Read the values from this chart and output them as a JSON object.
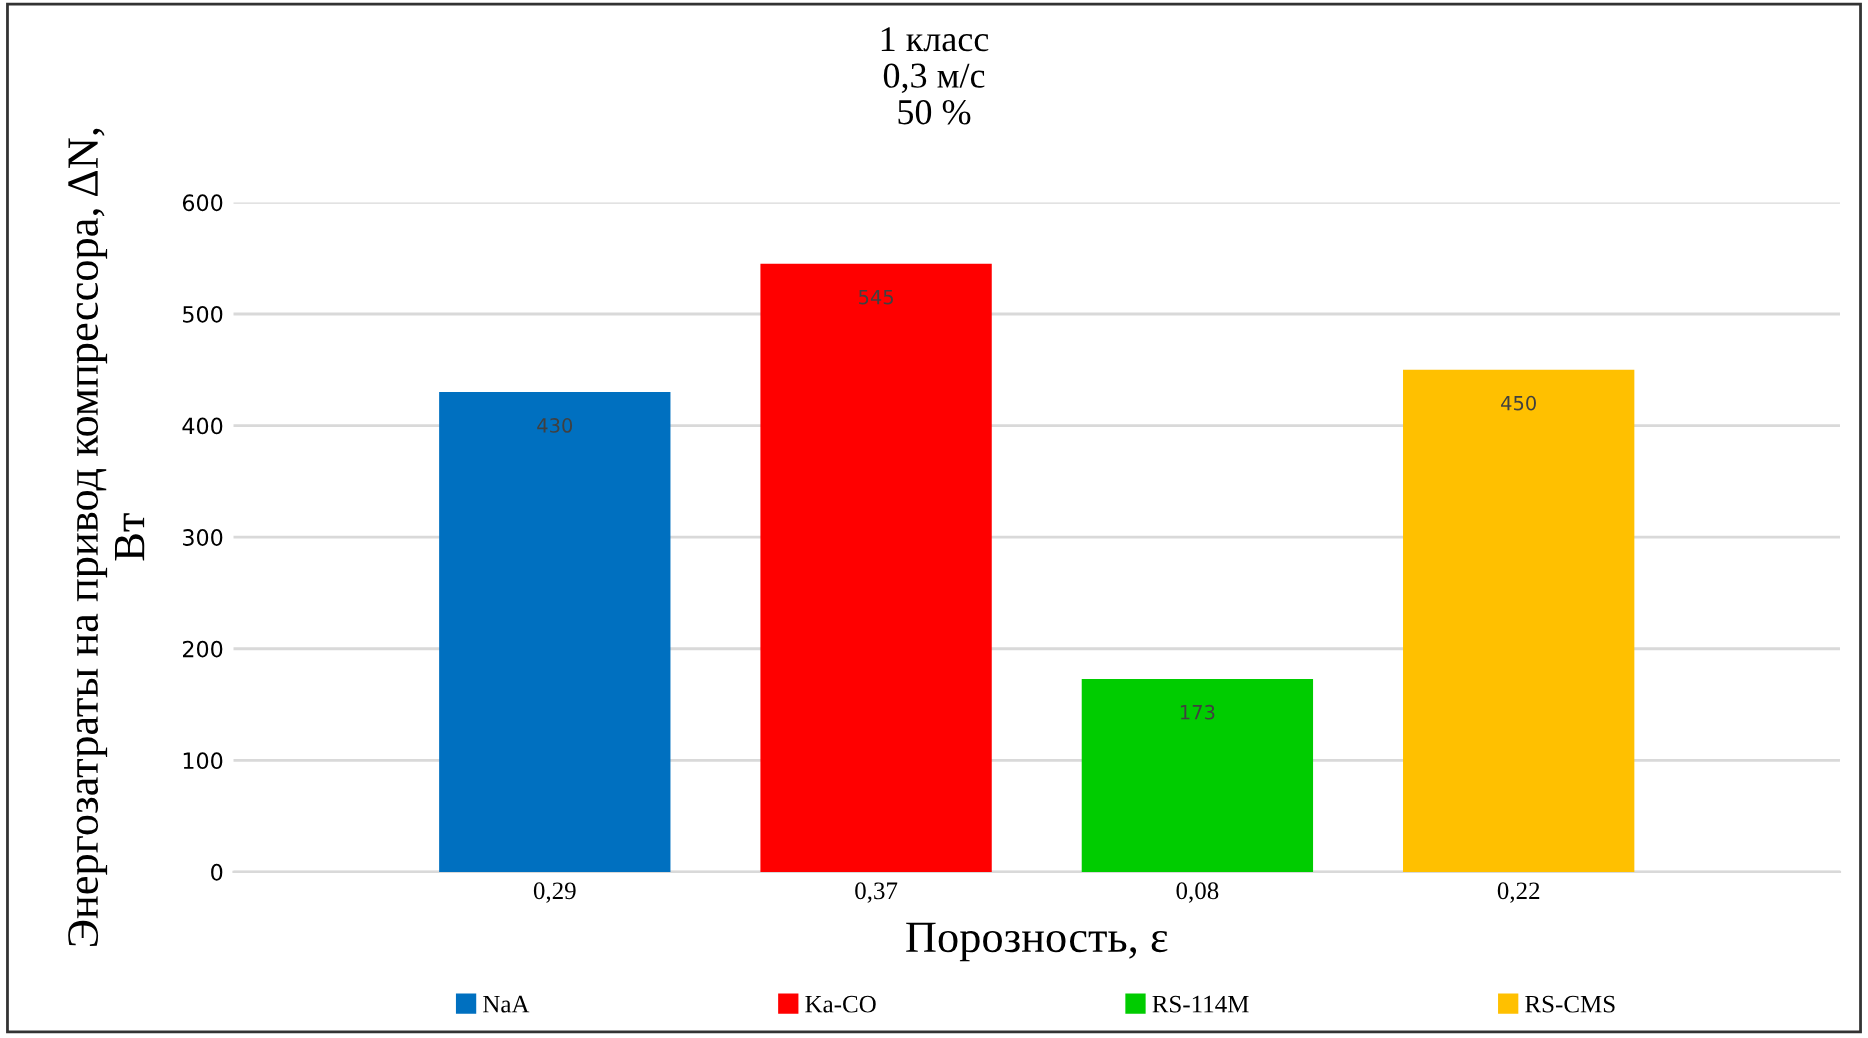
{
  "chart_data": {
    "type": "bar",
    "title": "1 класс\n0,3 м/с\n50 %",
    "xlabel": "Порозность, ε",
    "ylabel": "Энергозатраты на привод компрессора, ΔN,\nВт",
    "categories": [
      "0,29",
      "0,37",
      "0,08",
      "0,22"
    ],
    "series": [
      {
        "name": "NaA",
        "color": "#0070c0",
        "values": [
          430,
          null,
          null,
          null
        ],
        "value_labels": [
          "430",
          null,
          null,
          null
        ]
      },
      {
        "name": "Ka-CO",
        "color": "#ff0000",
        "values": [
          null,
          545,
          null,
          null
        ],
        "value_labels": [
          null,
          "545",
          null,
          null
        ]
      },
      {
        "name": "RS-114M",
        "color": "#00cc00",
        "values": [
          null,
          null,
          173,
          null
        ],
        "value_labels": [
          null,
          null,
          "173",
          null
        ]
      },
      {
        "name": "RS-CMS",
        "color": "#ffc000",
        "values": [
          null,
          null,
          null,
          450
        ],
        "value_labels": [
          null,
          null,
          null,
          "450"
        ]
      }
    ],
    "ylim": [
      0,
      600
    ],
    "yticks": [
      0,
      100,
      200,
      300,
      400,
      500,
      600
    ],
    "grid": "y",
    "legend": "bottom"
  }
}
